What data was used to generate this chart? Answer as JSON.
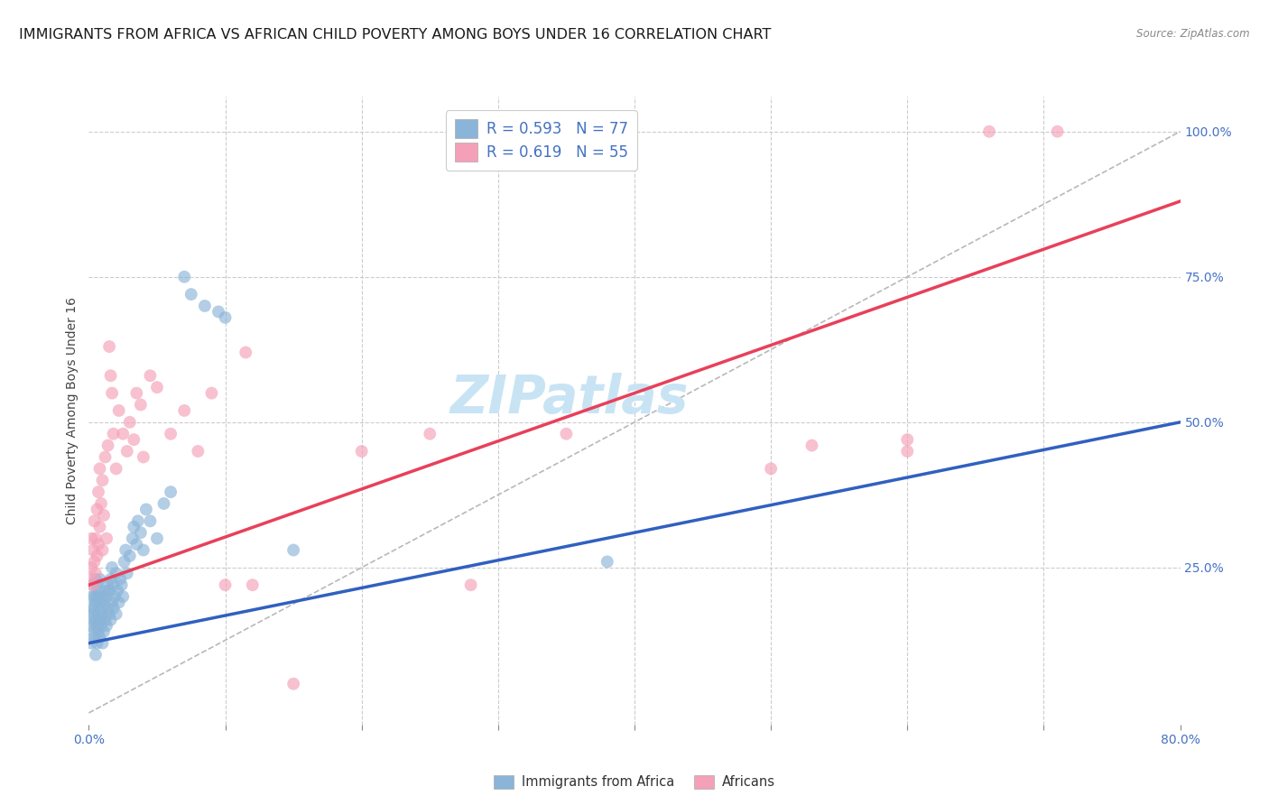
{
  "title": "IMMIGRANTS FROM AFRICA VS AFRICAN CHILD POVERTY AMONG BOYS UNDER 16 CORRELATION CHART",
  "source": "Source: ZipAtlas.com",
  "ylabel": "Child Poverty Among Boys Under 16",
  "xlim": [
    0.0,
    0.8
  ],
  "ylim": [
    -0.02,
    1.06
  ],
  "scatter_color_blue": "#8ab4d8",
  "scatter_color_pink": "#f4a0b8",
  "line_color_blue": "#3060c0",
  "line_color_pink": "#e8405a",
  "line_color_gray": "#b8b8b8",
  "watermark": "ZIPatlas",
  "watermark_color": "#c8e4f4",
  "title_fontsize": 11.5,
  "axis_label_fontsize": 10,
  "tick_fontsize": 10,
  "legend_fontsize": 12,
  "blue_line_x0": 0.0,
  "blue_line_y0": 0.12,
  "blue_line_x1": 0.8,
  "blue_line_y1": 0.5,
  "pink_line_x0": 0.0,
  "pink_line_y0": 0.22,
  "pink_line_x1": 0.8,
  "pink_line_y1": 0.88,
  "gray_line_x0": 0.0,
  "gray_line_y0": 0.0,
  "gray_line_x1": 0.8,
  "gray_line_y1": 1.0,
  "blue_pts": [
    [
      0.001,
      0.15
    ],
    [
      0.001,
      0.18
    ],
    [
      0.002,
      0.12
    ],
    [
      0.002,
      0.16
    ],
    [
      0.002,
      0.2
    ],
    [
      0.003,
      0.14
    ],
    [
      0.003,
      0.17
    ],
    [
      0.003,
      0.22
    ],
    [
      0.004,
      0.13
    ],
    [
      0.004,
      0.18
    ],
    [
      0.004,
      0.2
    ],
    [
      0.005,
      0.1
    ],
    [
      0.005,
      0.16
    ],
    [
      0.005,
      0.19
    ],
    [
      0.005,
      0.23
    ],
    [
      0.006,
      0.12
    ],
    [
      0.006,
      0.15
    ],
    [
      0.006,
      0.2
    ],
    [
      0.006,
      0.22
    ],
    [
      0.007,
      0.14
    ],
    [
      0.007,
      0.17
    ],
    [
      0.007,
      0.21
    ],
    [
      0.008,
      0.13
    ],
    [
      0.008,
      0.16
    ],
    [
      0.008,
      0.19
    ],
    [
      0.008,
      0.23
    ],
    [
      0.009,
      0.15
    ],
    [
      0.009,
      0.18
    ],
    [
      0.01,
      0.12
    ],
    [
      0.01,
      0.17
    ],
    [
      0.01,
      0.2
    ],
    [
      0.011,
      0.14
    ],
    [
      0.011,
      0.19
    ],
    [
      0.012,
      0.16
    ],
    [
      0.012,
      0.21
    ],
    [
      0.013,
      0.15
    ],
    [
      0.013,
      0.2
    ],
    [
      0.014,
      0.18
    ],
    [
      0.014,
      0.22
    ],
    [
      0.015,
      0.17
    ],
    [
      0.015,
      0.21
    ],
    [
      0.016,
      0.16
    ],
    [
      0.016,
      0.23
    ],
    [
      0.017,
      0.19
    ],
    [
      0.017,
      0.25
    ],
    [
      0.018,
      0.18
    ],
    [
      0.018,
      0.22
    ],
    [
      0.019,
      0.2
    ],
    [
      0.02,
      0.17
    ],
    [
      0.02,
      0.24
    ],
    [
      0.021,
      0.21
    ],
    [
      0.022,
      0.19
    ],
    [
      0.023,
      0.23
    ],
    [
      0.024,
      0.22
    ],
    [
      0.025,
      0.2
    ],
    [
      0.026,
      0.26
    ],
    [
      0.027,
      0.28
    ],
    [
      0.028,
      0.24
    ],
    [
      0.03,
      0.27
    ],
    [
      0.032,
      0.3
    ],
    [
      0.033,
      0.32
    ],
    [
      0.035,
      0.29
    ],
    [
      0.036,
      0.33
    ],
    [
      0.038,
      0.31
    ],
    [
      0.04,
      0.28
    ],
    [
      0.042,
      0.35
    ],
    [
      0.045,
      0.33
    ],
    [
      0.05,
      0.3
    ],
    [
      0.055,
      0.36
    ],
    [
      0.06,
      0.38
    ],
    [
      0.07,
      0.75
    ],
    [
      0.075,
      0.72
    ],
    [
      0.085,
      0.7
    ],
    [
      0.095,
      0.69
    ],
    [
      0.1,
      0.68
    ],
    [
      0.15,
      0.28
    ],
    [
      0.38,
      0.26
    ]
  ],
  "pink_pts": [
    [
      0.001,
      0.23
    ],
    [
      0.002,
      0.25
    ],
    [
      0.002,
      0.3
    ],
    [
      0.003,
      0.22
    ],
    [
      0.003,
      0.28
    ],
    [
      0.004,
      0.26
    ],
    [
      0.004,
      0.33
    ],
    [
      0.005,
      0.24
    ],
    [
      0.005,
      0.3
    ],
    [
      0.006,
      0.27
    ],
    [
      0.006,
      0.35
    ],
    [
      0.007,
      0.29
    ],
    [
      0.007,
      0.38
    ],
    [
      0.008,
      0.32
    ],
    [
      0.008,
      0.42
    ],
    [
      0.009,
      0.36
    ],
    [
      0.01,
      0.28
    ],
    [
      0.01,
      0.4
    ],
    [
      0.011,
      0.34
    ],
    [
      0.012,
      0.44
    ],
    [
      0.013,
      0.3
    ],
    [
      0.014,
      0.46
    ],
    [
      0.015,
      0.63
    ],
    [
      0.016,
      0.58
    ],
    [
      0.017,
      0.55
    ],
    [
      0.018,
      0.48
    ],
    [
      0.02,
      0.42
    ],
    [
      0.022,
      0.52
    ],
    [
      0.025,
      0.48
    ],
    [
      0.028,
      0.45
    ],
    [
      0.03,
      0.5
    ],
    [
      0.033,
      0.47
    ],
    [
      0.035,
      0.55
    ],
    [
      0.038,
      0.53
    ],
    [
      0.04,
      0.44
    ],
    [
      0.045,
      0.58
    ],
    [
      0.05,
      0.56
    ],
    [
      0.06,
      0.48
    ],
    [
      0.07,
      0.52
    ],
    [
      0.08,
      0.45
    ],
    [
      0.09,
      0.55
    ],
    [
      0.1,
      0.22
    ],
    [
      0.12,
      0.22
    ],
    [
      0.15,
      0.05
    ],
    [
      0.2,
      0.45
    ],
    [
      0.25,
      0.48
    ],
    [
      0.28,
      0.22
    ],
    [
      0.35,
      0.48
    ],
    [
      0.5,
      0.42
    ],
    [
      0.53,
      0.46
    ],
    [
      0.6,
      0.45
    ],
    [
      0.66,
      1.0
    ],
    [
      0.71,
      1.0
    ],
    [
      0.115,
      0.62
    ],
    [
      0.6,
      0.47
    ]
  ]
}
